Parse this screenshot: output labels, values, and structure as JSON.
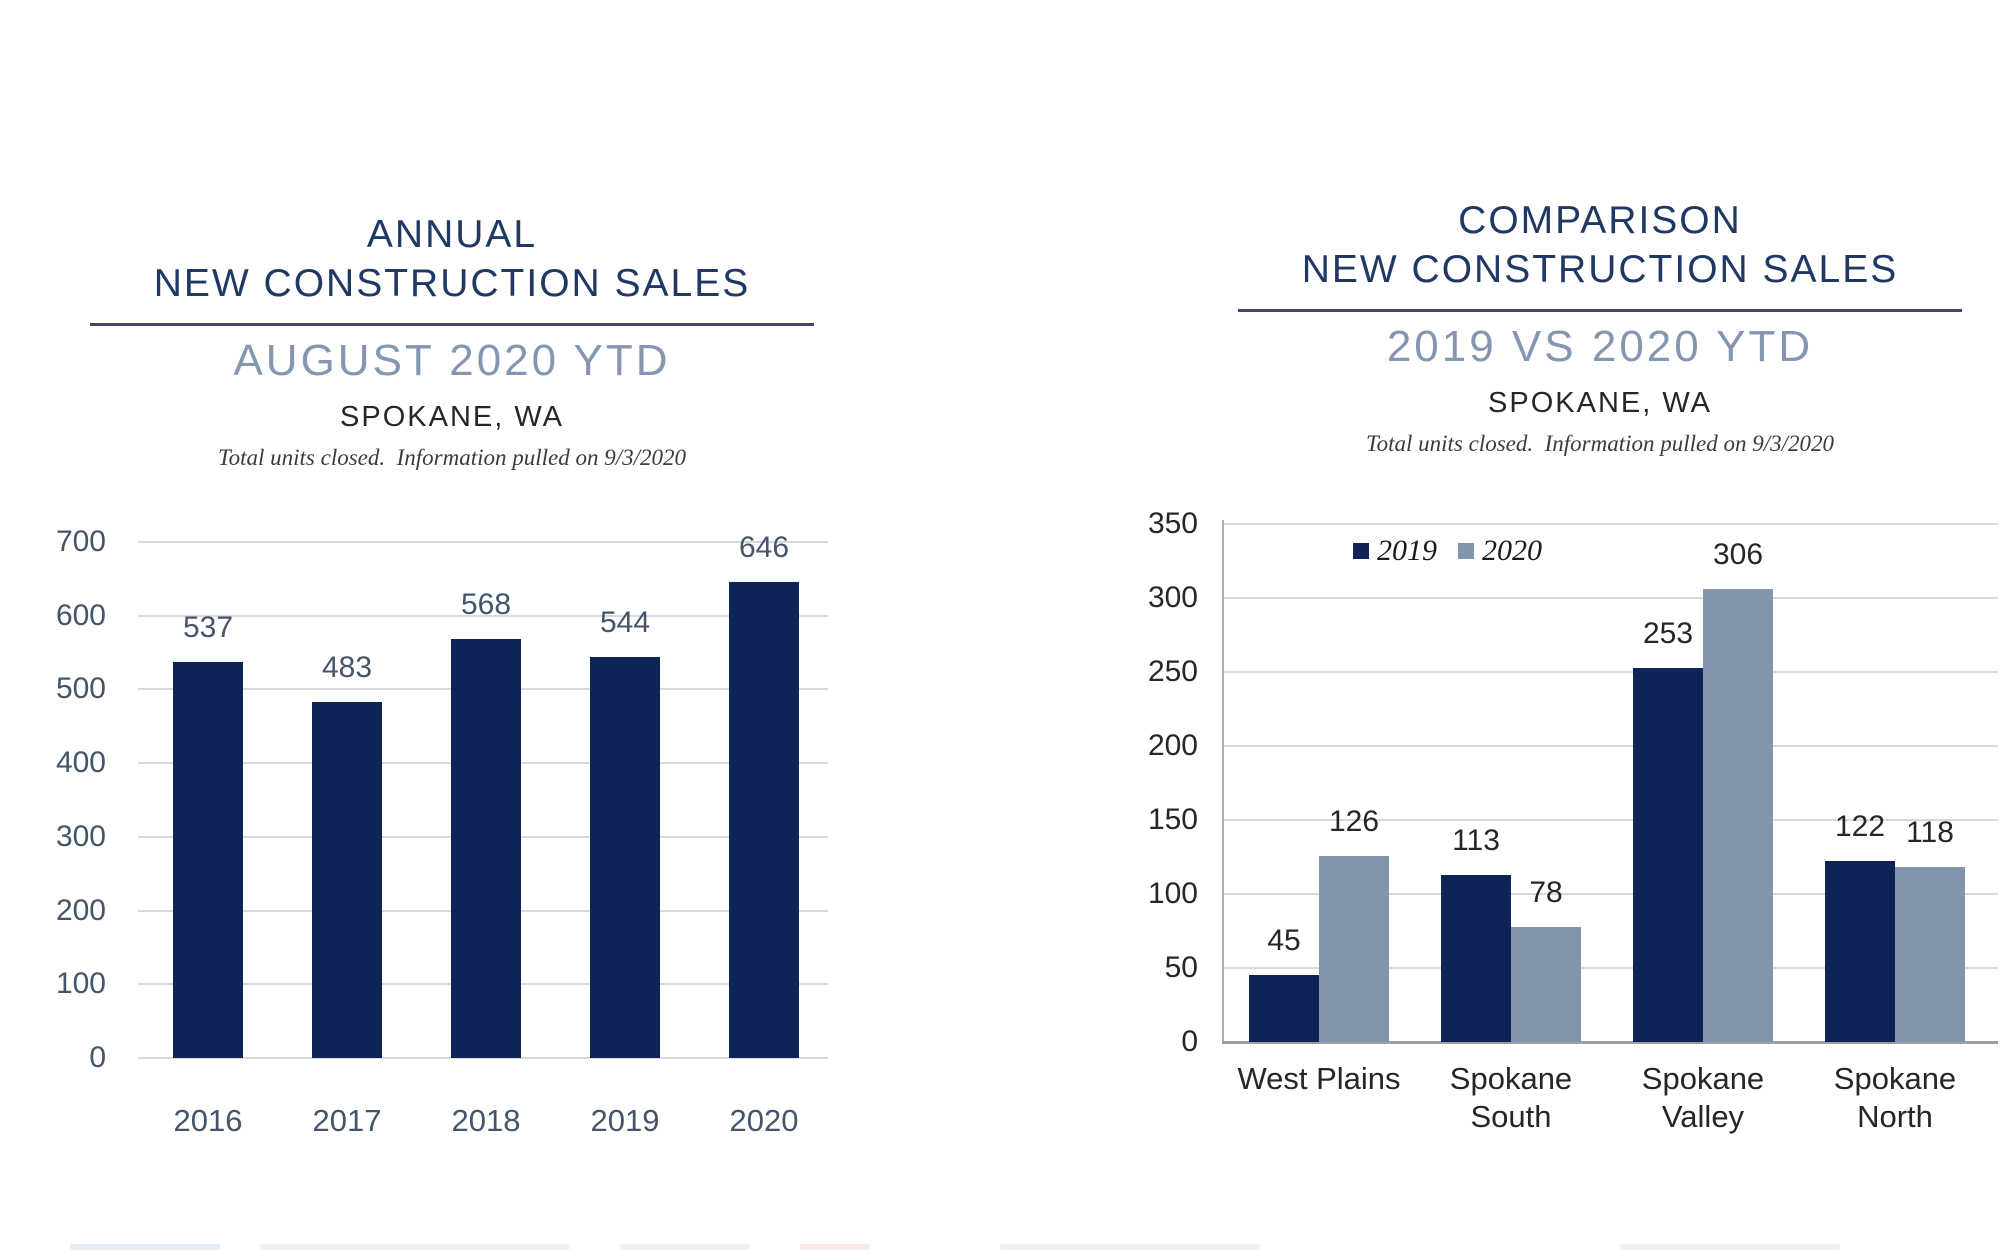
{
  "colors": {
    "bar_navy": "#0E2456",
    "bar_blue_gray": "#8295AD",
    "title_navy": "#1F3864",
    "subtitle_gray": "#8496B0",
    "left_axis_text": "#44546A",
    "right_axis_text": "#262626",
    "gridline": "#D9D9D9",
    "axis_line": "#AFAFAF"
  },
  "chart_data": [
    {
      "type": "bar",
      "title_line1": "ANNUAL",
      "title_line2": "NEW CONSTRUCTION SALES",
      "subtitle": "AUGUST 2020 YTD",
      "location": "SPOKANE, WA",
      "footnote": "Total units closed.  Information pulled on 9/3/2020",
      "categories": [
        "2016",
        "2017",
        "2018",
        "2019",
        "2020"
      ],
      "category_lines": [
        [
          "2016"
        ],
        [
          "2017"
        ],
        [
          "2018"
        ],
        [
          "2019"
        ],
        [
          "2020"
        ]
      ],
      "series": [
        {
          "name": "",
          "values": [
            537,
            483,
            568,
            544,
            646
          ],
          "color": "#0E2456"
        }
      ],
      "ylim": [
        0,
        700
      ],
      "ytick_step": 100,
      "ytick_labels": [
        "0",
        "100",
        "200",
        "300",
        "400",
        "500",
        "600",
        "700"
      ],
      "grid": true,
      "legend": false,
      "xlabel": "",
      "ylabel": ""
    },
    {
      "type": "bar",
      "title_line1": "COMPARISON",
      "title_line2": "NEW CONSTRUCTION SALES",
      "subtitle": "2019 VS 2020 YTD",
      "location": "SPOKANE, WA",
      "footnote": "Total units closed.  Information pulled on 9/3/2020",
      "categories": [
        "West Plains",
        "Spokane South",
        "Spokane Valley",
        "Spokane North"
      ],
      "category_lines": [
        [
          "West Plains"
        ],
        [
          "Spokane",
          "South"
        ],
        [
          "Spokane",
          "Valley"
        ],
        [
          "Spokane",
          "North"
        ]
      ],
      "series": [
        {
          "name": "2019",
          "values": [
            45,
            113,
            253,
            122
          ],
          "color": "#0E2456"
        },
        {
          "name": "2020",
          "values": [
            126,
            78,
            306,
            118
          ],
          "color": "#8295AD"
        }
      ],
      "ylim": [
        0,
        350
      ],
      "ytick_step": 50,
      "ytick_labels": [
        "0",
        "50",
        "100",
        "150",
        "200",
        "250",
        "300",
        "350"
      ],
      "grid": true,
      "legend": true,
      "legend_position": "top-center",
      "xlabel": "",
      "ylabel": ""
    }
  ]
}
